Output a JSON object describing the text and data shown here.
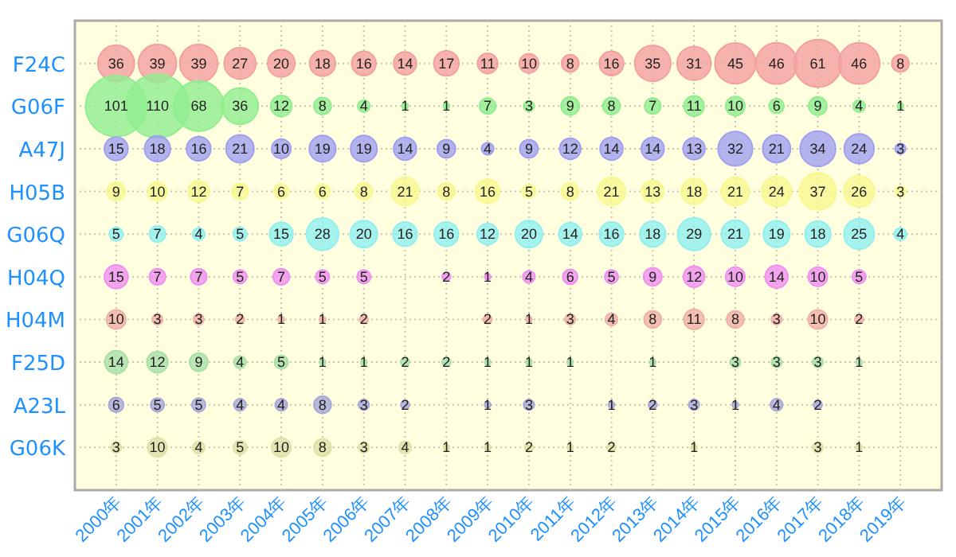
{
  "chart_data": {
    "type": "heatmap",
    "categories": [
      "2000年",
      "2001年",
      "2002年",
      "2003年",
      "2004年",
      "2005年",
      "2006年",
      "2007年",
      "2008年",
      "2009年",
      "2010年",
      "2011年",
      "2012年",
      "2013年",
      "2014年",
      "2015年",
      "2016年",
      "2017年",
      "2018年",
      "2019年"
    ],
    "y_categories": [
      "F24C",
      "G06F",
      "A47J",
      "H05B",
      "G06Q",
      "H04Q",
      "H04M",
      "F25D",
      "A23L",
      "G06K"
    ],
    "colors": [
      "#f4a0a0",
      "#90ee90",
      "#a0a0f0",
      "#f8f890",
      "#90f0f0",
      "#f090f0",
      "#f0b0a8",
      "#a8e0a8",
      "#a8a8d8",
      "#e0e0a8"
    ],
    "data_labels": true,
    "grid": true,
    "cells": [
      [
        36,
        39,
        39,
        27,
        20,
        18,
        16,
        14,
        17,
        11,
        10,
        8,
        16,
        35,
        31,
        45,
        46,
        61,
        46,
        8
      ],
      [
        101,
        110,
        68,
        36,
        12,
        8,
        4,
        1,
        1,
        7,
        3,
        9,
        8,
        7,
        11,
        10,
        6,
        9,
        4,
        1
      ],
      [
        15,
        18,
        16,
        21,
        10,
        19,
        19,
        14,
        9,
        4,
        9,
        12,
        14,
        14,
        13,
        32,
        21,
        34,
        24,
        3
      ],
      [
        9,
        10,
        12,
        7,
        6,
        6,
        8,
        21,
        8,
        16,
        5,
        8,
        21,
        13,
        18,
        21,
        24,
        37,
        26,
        3
      ],
      [
        5,
        7,
        4,
        5,
        15,
        28,
        20,
        16,
        16,
        12,
        20,
        14,
        16,
        18,
        29,
        21,
        19,
        18,
        25,
        4
      ],
      [
        15,
        7,
        7,
        5,
        7,
        5,
        5,
        null,
        2,
        1,
        4,
        6,
        5,
        9,
        12,
        10,
        14,
        10,
        5,
        null
      ],
      [
        10,
        3,
        3,
        2,
        1,
        1,
        2,
        null,
        null,
        2,
        1,
        3,
        4,
        8,
        11,
        8,
        3,
        10,
        2,
        null
      ],
      [
        14,
        12,
        9,
        4,
        5,
        1,
        1,
        2,
        2,
        1,
        1,
        1,
        null,
        1,
        null,
        3,
        3,
        3,
        1,
        null
      ],
      [
        6,
        5,
        5,
        4,
        4,
        8,
        3,
        2,
        null,
        1,
        3,
        null,
        1,
        2,
        3,
        1,
        4,
        2,
        null,
        null
      ],
      [
        3,
        10,
        4,
        5,
        10,
        8,
        3,
        4,
        1,
        1,
        2,
        1,
        2,
        null,
        1,
        null,
        null,
        3,
        1,
        null
      ]
    ]
  }
}
